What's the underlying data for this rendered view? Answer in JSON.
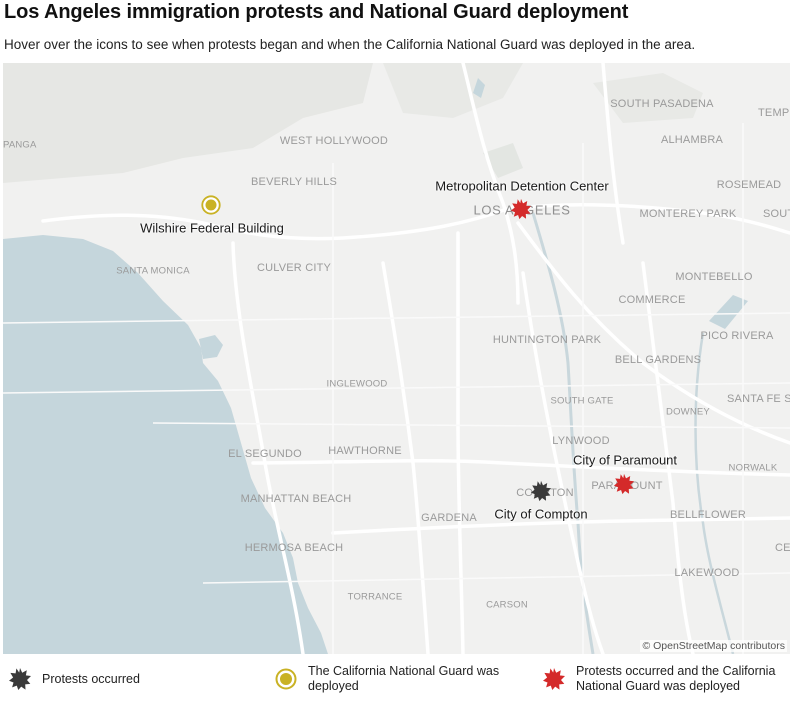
{
  "header": {
    "title": "Los Angeles immigration protests and National Guard deployment",
    "subtitle": "Hover over the icons to see when protests began and when the California National Guard was deployed in the area."
  },
  "map": {
    "attribution": "© OpenStreetMap contributors",
    "colors": {
      "water": "#c5d6dc",
      "land": "#f1f1f0",
      "park": "#e4e6e3",
      "road": "#ffffff"
    },
    "places": {
      "south_pasadena": "SOUTH PASADENA",
      "temple": "TEMP",
      "west_hollywood": "WEST HOLLYWOOD",
      "alhambra": "ALHAMBRA",
      "panga": "PANGA",
      "beverly_hills": "BEVERLY HILLS",
      "rosemead": "ROSEMEAD",
      "monterey_park": "MONTEREY PARK",
      "south_el_monte": "SOUT",
      "los_angeles": "LOS ANGELES",
      "santa_monica": "SANTA MONICA",
      "culver_city": "CULVER CITY",
      "montebello": "MONTEBELLO",
      "commerce": "COMMERCE",
      "huntington_park": "HUNTINGTON PARK",
      "pico_rivera": "PICO RIVERA",
      "bell_gardens": "BELL GARDENS",
      "inglewood": "INGLEWOOD",
      "south_gate": "SOUTH GATE",
      "downey": "DOWNEY",
      "santa_fe_springs": "SANTA FE S",
      "el_segundo": "EL SEGUNDO",
      "hawthorne": "HAWTHORNE",
      "lynwood": "LYNWOOD",
      "norwalk": "NORWALK",
      "manhattan_beach": "MANHATTAN BEACH",
      "compton": "COMPTON",
      "paramount": "PARAMOUNT",
      "gardena": "GARDENA",
      "bellflower": "BELLFLOWER",
      "hermosa_beach": "HERMOSA BEACH",
      "cerritos": "CE",
      "lakewood": "LAKEWOOD",
      "torrance": "TORRANCE",
      "carson": "CARSON"
    },
    "markers": [
      {
        "id": "wilshire",
        "label": "Wilshire Federal Building",
        "type": "guard"
      },
      {
        "id": "mdc",
        "label": "Metropolitan Detention Center",
        "type": "both"
      },
      {
        "id": "paramount",
        "label": "City of Paramount",
        "type": "both"
      },
      {
        "id": "compton",
        "label": "City of Compton",
        "type": "protest"
      }
    ]
  },
  "legend": {
    "protest": {
      "label": "Protests occurred",
      "icon": "dark-starburst-icon",
      "color": "#3a3a3a"
    },
    "guard": {
      "label": "The California National Guard was deployed",
      "icon": "yellow-ring-icon",
      "color": "#c9b224"
    },
    "both": {
      "label": "Protests occurred and the California National Guard was deployed",
      "icon": "red-starburst-icon",
      "color": "#d42a2a"
    }
  }
}
